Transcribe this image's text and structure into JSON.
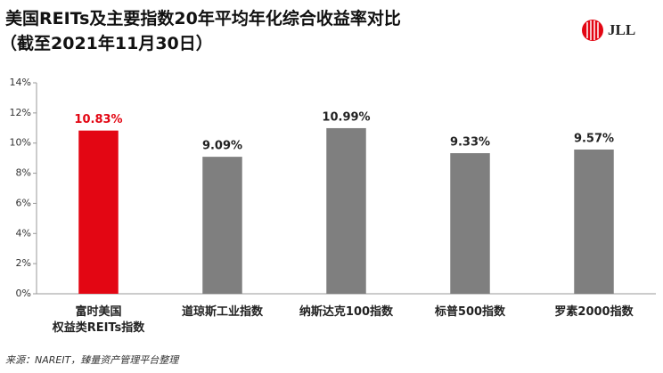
{
  "chart_data": {
    "type": "bar",
    "title": "美国REITs及主要指数20年平均年化综合收益率对比",
    "subtitle": "（截至2021年11月30日）",
    "logo": "JLL",
    "source": "来源：NAREIT，臻量资产管理平台整理",
    "categories": [
      "富时美国\n权益类REITs指数",
      "道琼斯工业指数",
      "纳斯达克100指数",
      "标普500指数",
      "罗素2000指数"
    ],
    "values": [
      10.83,
      9.09,
      10.99,
      9.33,
      9.57
    ],
    "value_labels": [
      "10.83%",
      "9.09%",
      "10.99%",
      "9.33%",
      "9.57%"
    ],
    "colors": [
      "#e30613",
      "#7f7f7f",
      "#7f7f7f",
      "#7f7f7f",
      "#7f7f7f"
    ],
    "ylim": [
      0,
      14
    ],
    "yticks": [
      {
        "value": 0,
        "label": "0%"
      },
      {
        "value": 2,
        "label": "2%"
      },
      {
        "value": 4,
        "label": "4%"
      },
      {
        "value": 6,
        "label": "6%"
      },
      {
        "value": 8,
        "label": "8%"
      },
      {
        "value": 10,
        "label": "10%"
      },
      {
        "value": 12,
        "label": "12%"
      },
      {
        "value": 14,
        "label": "14%"
      }
    ],
    "grid": false
  }
}
